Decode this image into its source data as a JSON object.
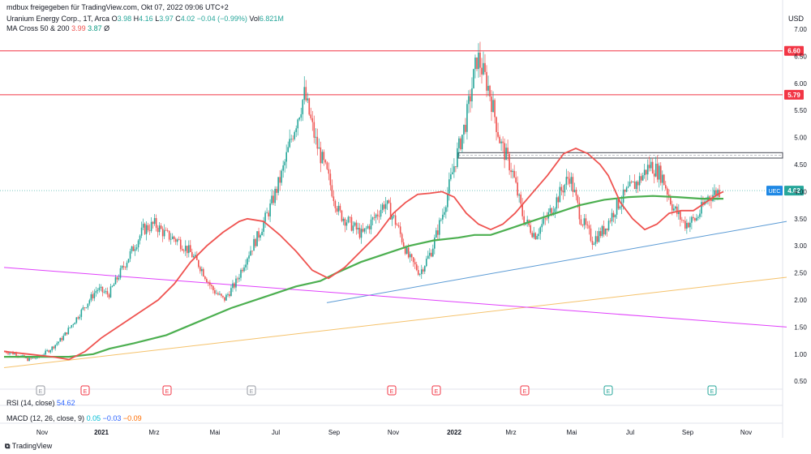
{
  "header": {
    "shared_by": "mdbux freigegeben für TradingView.com, Okt 07, 2022 09:06 UTC+2"
  },
  "symbol": {
    "name": "Uranium Energy Corp., 1T, Arca",
    "open_label": "O",
    "open": "3.98",
    "high_label": "H",
    "high": "4.16",
    "low_label": "L",
    "low": "3.97",
    "close_label": "C",
    "close": "4.02",
    "change": "−0.04 (−0.99%)",
    "vol_label": "Vol",
    "vol": "6.821M"
  },
  "ma": {
    "label": "MA Cross 50 & 200",
    "v1": "3.99",
    "v2": "3.87",
    "v3": "Ø"
  },
  "rsi": {
    "label": "RSI (14, close)",
    "value": "54.62"
  },
  "macd": {
    "label": "MACD (12, 26, close, 9)",
    "v1": "0.05",
    "v2": "−0.03",
    "v3": "−0.09"
  },
  "currency": "USD",
  "ticker_tag": "UEC",
  "brand": "TradingView",
  "colors": {
    "up": "#26a69a",
    "down": "#ef5350",
    "ma50": "#ef5350",
    "ma200": "#4caf50"
  },
  "chart_data": {
    "type": "candlestick",
    "y_ticks": [
      "7.00",
      "6.50",
      "6.00",
      "5.50",
      "5.00",
      "4.50",
      "4.00",
      "3.50",
      "3.00",
      "2.50",
      "2.00",
      "1.50",
      "1.00",
      "0.50"
    ],
    "ylim": [
      0.4,
      7.2
    ],
    "x_ticks": [
      "Nov",
      "2021",
      "Mrz",
      "Mai",
      "Jul",
      "Sep",
      "Nov",
      "2022",
      "Mrz",
      "Mai",
      "Jul",
      "Sep",
      "Nov"
    ],
    "horizontal_levels": [
      {
        "value": 6.6,
        "label": "6.60"
      },
      {
        "value": 5.79,
        "label": "5.79"
      }
    ],
    "last_price": {
      "value": 4.02,
      "label": "4.02"
    },
    "resistance_zone": [
      4.62,
      4.72
    ],
    "earnings_markers": [
      "E",
      "E",
      "E",
      "E",
      "E",
      "E",
      "E",
      "E",
      "E"
    ],
    "ma50_path": [
      [
        0,
        1.05
      ],
      [
        30,
        1.0
      ],
      [
        60,
        0.95
      ],
      [
        80,
        0.9
      ],
      [
        100,
        1.05
      ],
      [
        120,
        1.3
      ],
      [
        150,
        1.6
      ],
      [
        170,
        1.8
      ],
      [
        190,
        2.0
      ],
      [
        210,
        2.3
      ],
      [
        230,
        2.7
      ],
      [
        250,
        3.0
      ],
      [
        270,
        3.25
      ],
      [
        290,
        3.45
      ],
      [
        300,
        3.5
      ],
      [
        320,
        3.45
      ],
      [
        340,
        3.2
      ],
      [
        360,
        2.9
      ],
      [
        380,
        2.55
      ],
      [
        400,
        2.4
      ],
      [
        420,
        2.6
      ],
      [
        440,
        2.9
      ],
      [
        460,
        3.2
      ],
      [
        480,
        3.6
      ],
      [
        495,
        3.8
      ],
      [
        510,
        3.95
      ],
      [
        525,
        3.97
      ],
      [
        540,
        4.0
      ],
      [
        555,
        3.9
      ],
      [
        570,
        3.6
      ],
      [
        585,
        3.4
      ],
      [
        600,
        3.3
      ],
      [
        615,
        3.4
      ],
      [
        630,
        3.6
      ],
      [
        650,
        3.95
      ],
      [
        670,
        4.3
      ],
      [
        690,
        4.7
      ],
      [
        705,
        4.8
      ],
      [
        720,
        4.7
      ],
      [
        735,
        4.5
      ],
      [
        745,
        4.3
      ],
      [
        760,
        3.8
      ],
      [
        775,
        3.5
      ],
      [
        790,
        3.3
      ],
      [
        805,
        3.4
      ],
      [
        820,
        3.6
      ],
      [
        835,
        3.65
      ],
      [
        850,
        3.65
      ],
      [
        865,
        3.8
      ],
      [
        880,
        3.95
      ],
      [
        887,
        4.0
      ]
    ],
    "ma200_path": [
      [
        0,
        0.95
      ],
      [
        40,
        0.95
      ],
      [
        80,
        0.95
      ],
      [
        110,
        1.0
      ],
      [
        130,
        1.1
      ],
      [
        160,
        1.2
      ],
      [
        200,
        1.35
      ],
      [
        240,
        1.6
      ],
      [
        280,
        1.85
      ],
      [
        320,
        2.05
      ],
      [
        360,
        2.25
      ],
      [
        390,
        2.35
      ],
      [
        410,
        2.5
      ],
      [
        440,
        2.7
      ],
      [
        470,
        2.85
      ],
      [
        500,
        3.0
      ],
      [
        530,
        3.1
      ],
      [
        560,
        3.15
      ],
      [
        580,
        3.2
      ],
      [
        600,
        3.2
      ],
      [
        620,
        3.3
      ],
      [
        650,
        3.45
      ],
      [
        680,
        3.6
      ],
      [
        710,
        3.75
      ],
      [
        740,
        3.85
      ],
      [
        770,
        3.9
      ],
      [
        800,
        3.92
      ],
      [
        830,
        3.9
      ],
      [
        860,
        3.87
      ],
      [
        887,
        3.87
      ]
    ],
    "trendlines": [
      {
        "name": "rising-support",
        "from": [
          398,
          1.95
        ],
        "to": [
          965,
          3.45
        ],
        "color": "#5b9bd5"
      },
      {
        "name": "long-support",
        "from": [
          0,
          0.75
        ],
        "to": [
          965,
          2.42
        ],
        "color": "#f5c26b"
      },
      {
        "name": "falling-line",
        "from": [
          0,
          2.6
        ],
        "to": [
          965,
          1.5
        ],
        "color": "#e040fb"
      }
    ],
    "candles_seed": [
      1.05,
      1.0,
      0.9,
      0.95,
      1.1,
      1.3,
      1.6,
      1.9,
      2.2,
      2.1,
      2.5,
      2.9,
      3.3,
      3.4,
      3.2,
      3.1,
      2.9,
      2.6,
      2.2,
      2.0,
      2.3,
      2.8,
      3.2,
      3.7,
      4.3,
      5.1,
      5.8,
      4.9,
      4.3,
      3.6,
      3.4,
      3.2,
      3.5,
      3.8,
      3.4,
      2.8,
      2.5,
      2.9,
      3.6,
      4.5,
      5.3,
      6.5,
      5.9,
      4.9,
      4.4,
      3.5,
      3.2,
      3.5,
      3.9,
      4.3,
      3.5,
      3.1,
      3.3,
      3.7,
      4.0,
      4.2,
      4.5,
      4.3,
      3.7,
      3.4,
      3.5,
      3.9,
      4.02
    ]
  }
}
